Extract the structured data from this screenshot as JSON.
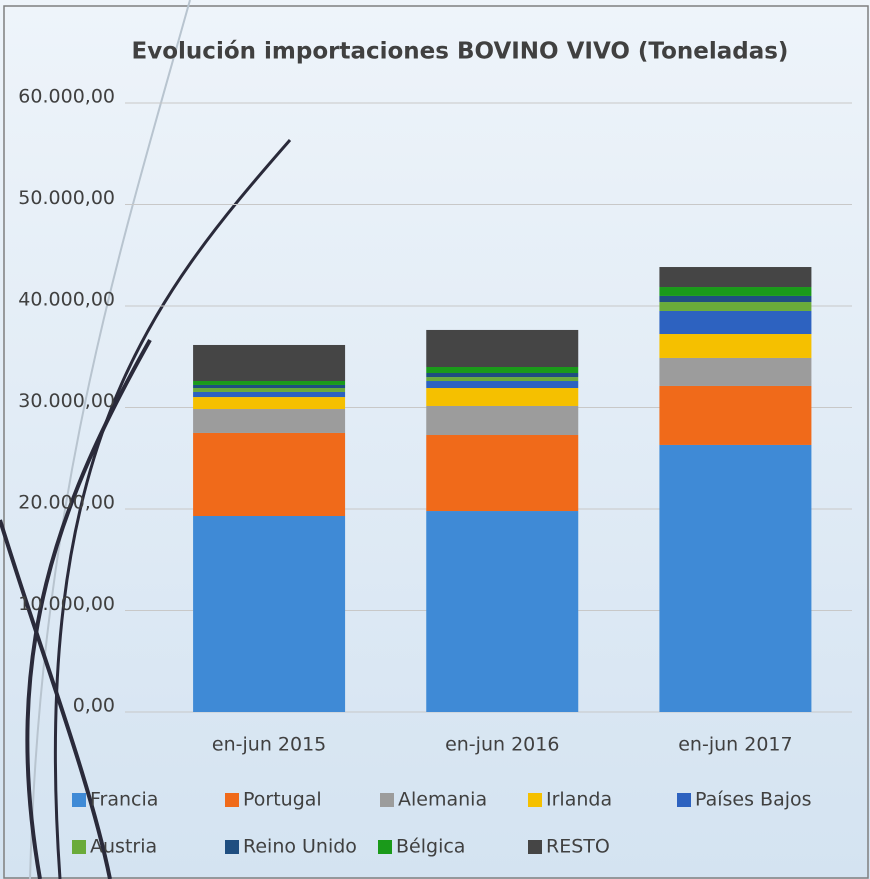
{
  "chart_data": {
    "type": "stacked_bar",
    "title": "Evolución importaciones BOVINO VIVO (Toneladas)",
    "categories": [
      "en-jun 2015",
      "en-jun 2016",
      "en-jun 2017"
    ],
    "series": [
      {
        "name": "Francia",
        "color": "#3f8ad6",
        "values": [
          19310,
          19800,
          26310
        ]
      },
      {
        "name": "Portugal",
        "color": "#f06a1a",
        "values": [
          8180,
          7490,
          5810
        ]
      },
      {
        "name": "Alemania",
        "color": "#9c9c9c",
        "values": [
          2360,
          2860,
          2760
        ]
      },
      {
        "name": "Irlanda",
        "color": "#f5c000",
        "values": [
          1180,
          1770,
          2360
        ]
      },
      {
        "name": "Países Bajos",
        "color": "#2d62c0",
        "values": [
          500,
          690,
          2270
        ]
      },
      {
        "name": "Austria",
        "color": "#6aab3a",
        "values": [
          390,
          390,
          880
        ]
      },
      {
        "name": "Reino Unido",
        "color": "#1f4e80",
        "values": [
          300,
          400,
          600
        ]
      },
      {
        "name": "Bélgica",
        "color": "#1a9a1a",
        "values": [
          390,
          590,
          880
        ]
      },
      {
        "name": "RESTO",
        "color": "#454545",
        "values": [
          3550,
          3650,
          1970
        ]
      }
    ],
    "ylim": [
      0,
      60000
    ],
    "yticks": [
      {
        "value": 0,
        "label": "0,00"
      },
      {
        "value": 10000,
        "label": "10.000,00"
      },
      {
        "value": 20000,
        "label": "20.000,00"
      },
      {
        "value": 30000,
        "label": "30.000,00"
      },
      {
        "value": 40000,
        "label": "40.000,00"
      },
      {
        "value": 50000,
        "label": "50.000,00"
      },
      {
        "value": 60000,
        "label": "60.000,00"
      }
    ],
    "grid": true
  }
}
